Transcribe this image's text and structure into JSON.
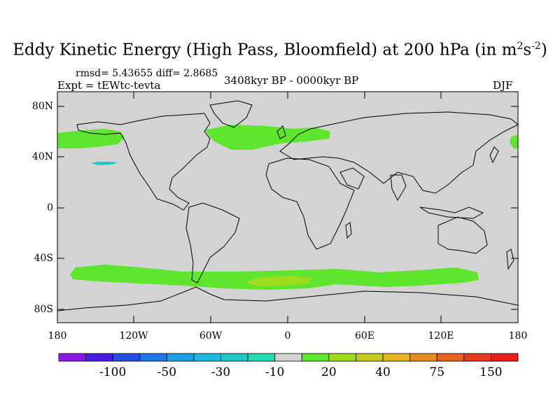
{
  "title_main": "Eddy Kinetic Energy (High Pass, Bloomfield) at 200 hPa (in m",
  "title_sup1": "2",
  "title_mid": "s",
  "title_sup2": "-2",
  "title_end": ")",
  "stats": "rmsd= 5.43655 diff= 2.8685",
  "experiment": "Expt = tEWtc-tevta",
  "period": "3408kyr BP - 0000kyr BP",
  "season": "DJF",
  "lat_ticks": [
    "80N",
    "40N",
    "0",
    "40S",
    "80S"
  ],
  "lon_ticks": [
    "180",
    "120W",
    "60W",
    "0",
    "60E",
    "120E",
    "180"
  ],
  "colorbar": {
    "colors": [
      "#8c1ae6",
      "#4b1ee6",
      "#2350e0",
      "#1e78e6",
      "#1ea0e6",
      "#1eb9e0",
      "#1ec8c8",
      "#1edcb4",
      "#d3d3d3",
      "#5ee62e",
      "#a0dc1e",
      "#c8c81e",
      "#e6b41e",
      "#e68c1e",
      "#e6641e",
      "#e63c1e",
      "#e61e1e"
    ],
    "labels": [
      "-100",
      "-50",
      "-30",
      "-10",
      "20",
      "40",
      "75",
      "150"
    ]
  },
  "colors": {
    "background": "#d3d3d3",
    "band_light": "#5ee62e",
    "band_strong": "#a0dc1e",
    "negative_patch": "#1ec8c8"
  }
}
